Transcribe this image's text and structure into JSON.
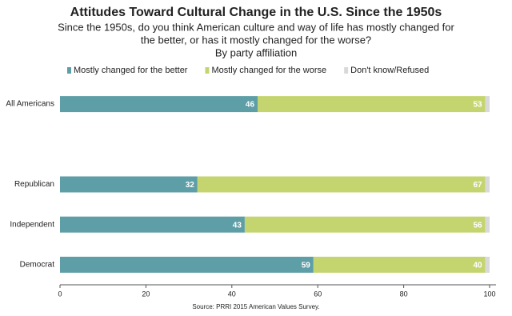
{
  "chart_data": {
    "type": "stacked-barh",
    "title": "Attitudes Toward Cultural Change in the U.S. Since the 1950s",
    "subtitle": [
      "Since the 1950s, do you think American culture and way of life has mostly changed for",
      "the better, or has it mostly changed for the worse?",
      "By party affiliation"
    ],
    "categories": [
      "All Americans",
      null,
      "Republican",
      "Independent",
      "Democrat"
    ],
    "series": [
      {
        "name": "Mostly changed for the better",
        "color": "#5e9ea6",
        "values": [
          46,
          null,
          32,
          43,
          59
        ],
        "show_labels": true
      },
      {
        "name": "Mostly changed for the worse",
        "color": "#c4d56f",
        "values": [
          53,
          null,
          67,
          56,
          40
        ],
        "show_labels": true
      },
      {
        "name": "Don't know/Refused",
        "color": "#d9d9d9",
        "values": [
          1,
          null,
          1,
          1,
          1
        ],
        "show_labels": false
      }
    ],
    "xlim": [
      0,
      100
    ],
    "xticks": [
      0,
      20,
      40,
      60,
      80,
      100
    ],
    "source": "Source: PRRI 2015 American Values Survey."
  }
}
